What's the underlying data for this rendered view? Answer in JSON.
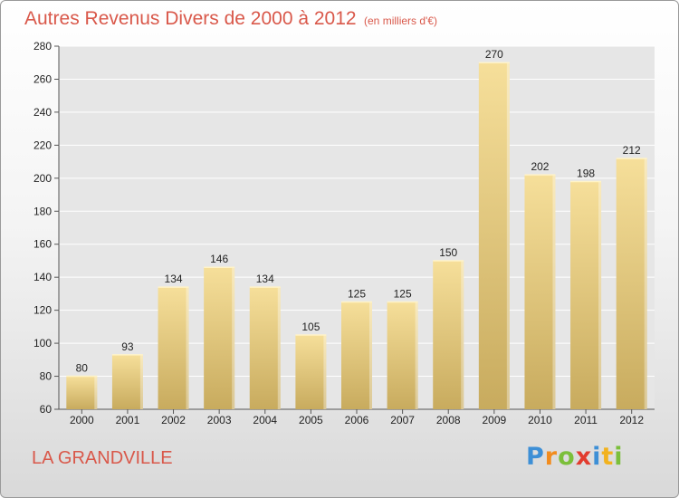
{
  "header": {
    "title": "Autres Revenus Divers de 2000 à 2012",
    "subtitle": "(en milliers d'€)"
  },
  "footer": {
    "city": "LA GRANDVILLE"
  },
  "logo": {
    "text": "Proxiti",
    "letters": [
      {
        "ch": "P",
        "color": "#3d8fd6"
      },
      {
        "ch": "r",
        "color": "#f28c1e"
      },
      {
        "ch": "o",
        "color": "#7bbf3a"
      },
      {
        "ch": "x",
        "color": "#e23c2f"
      },
      {
        "ch": "i",
        "color": "#3d8fd6"
      },
      {
        "ch": "t",
        "color": "#f2b21e"
      },
      {
        "ch": "i",
        "color": "#7bbf3a"
      }
    ]
  },
  "colors": {
    "accent": "#d9584a",
    "bar_light": "#f6df9a",
    "bar_dark": "#c8ab5e",
    "grid": "#ffffff",
    "plot_bg": "#e6e6e6"
  },
  "chart_data": {
    "type": "bar",
    "title": "Autres Revenus Divers de 2000 à 2012",
    "subtitle": "(en milliers d'€)",
    "categories": [
      "2000",
      "2001",
      "2002",
      "2003",
      "2004",
      "2005",
      "2006",
      "2007",
      "2008",
      "2009",
      "2010",
      "2011",
      "2012"
    ],
    "values": [
      80,
      93,
      134,
      146,
      134,
      105,
      125,
      125,
      150,
      270,
      202,
      198,
      212
    ],
    "ylim": [
      60,
      280
    ],
    "yticks": [
      60,
      80,
      100,
      120,
      140,
      160,
      180,
      200,
      220,
      240,
      260,
      280
    ],
    "grid": true,
    "legend": "none"
  }
}
